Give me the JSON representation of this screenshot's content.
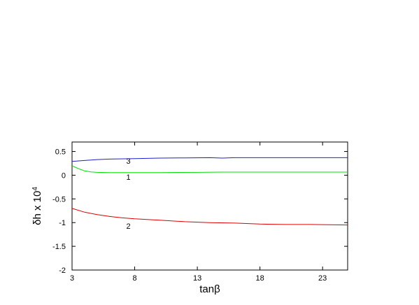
{
  "chart_data": {
    "type": "line",
    "xlabel": "tanβ",
    "ylabel_base": "δh x 10",
    "ylabel_exponent": "4",
    "xlim": [
      3,
      25
    ],
    "ylim": [
      -2,
      0.7
    ],
    "xticks": [
      3,
      8,
      13,
      18,
      23
    ],
    "yticks": [
      0.5,
      0,
      -0.5,
      -1,
      -1.5,
      -2
    ],
    "ytick_labels": [
      "0.5",
      "0",
      "-0.5",
      "-1",
      "-1.5",
      "-2"
    ],
    "grid": false,
    "series": [
      {
        "name": "1",
        "color": "#00e000",
        "x": [
          3,
          3.5,
          4,
          4.5,
          5,
          6,
          8,
          10,
          13,
          15,
          18,
          21,
          25
        ],
        "y": [
          0.2,
          0.14,
          0.09,
          0.07,
          0.06,
          0.055,
          0.055,
          0.055,
          0.06,
          0.065,
          0.065,
          0.065,
          0.065
        ]
      },
      {
        "name": "2",
        "color": "#e00000",
        "x": [
          3,
          4,
          5,
          6,
          7,
          8,
          10,
          12,
          14,
          16,
          18,
          20,
          22,
          25
        ],
        "y": [
          -0.7,
          -0.78,
          -0.83,
          -0.87,
          -0.9,
          -0.92,
          -0.95,
          -0.98,
          -1.0,
          -1.01,
          -1.03,
          -1.04,
          -1.04,
          -1.05
        ]
      },
      {
        "name": "3",
        "color": "#2020d0",
        "x": [
          3,
          4,
          5,
          6,
          8,
          10,
          12,
          14,
          15,
          16,
          18,
          21,
          25
        ],
        "y": [
          0.29,
          0.31,
          0.33,
          0.34,
          0.35,
          0.36,
          0.365,
          0.37,
          0.36,
          0.37,
          0.37,
          0.37,
          0.37
        ]
      }
    ],
    "curve_labels": [
      {
        "text": "3",
        "x": 7.5,
        "y": 0.24
      },
      {
        "text": "1",
        "x": 7.5,
        "y": -0.1
      },
      {
        "text": "2",
        "x": 7.5,
        "y": -1.13
      }
    ]
  }
}
